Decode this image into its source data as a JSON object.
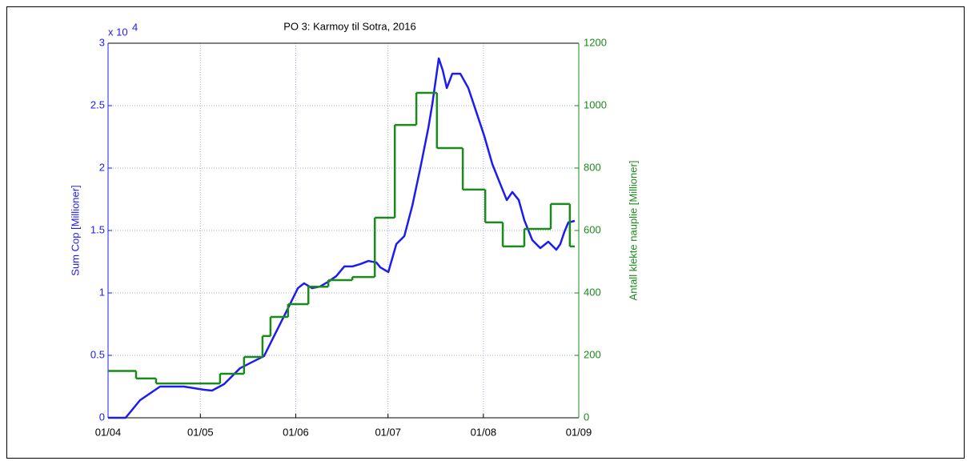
{
  "chart_data": {
    "type": "line",
    "title": "PO 3: Karmoy til Sotra, 2016",
    "ylabel": "Sum Cop [Millioner]",
    "y2label": "Antall klekte nauplie [Millioner]",
    "y_multiplier": {
      "base": "x 10",
      "exponent": "4"
    },
    "xlim": [
      0,
      153
    ],
    "xticks": [
      {
        "value": 0,
        "label": "01/04"
      },
      {
        "value": 30,
        "label": "01/05"
      },
      {
        "value": 61,
        "label": "01/06"
      },
      {
        "value": 91,
        "label": "01/07"
      },
      {
        "value": 122,
        "label": "01/08"
      },
      {
        "value": 153,
        "label": "01/09"
      }
    ],
    "ylim": [
      0,
      30000
    ],
    "yticks": [
      {
        "value": 0,
        "label": "0"
      },
      {
        "value": 5000,
        "label": "0.5"
      },
      {
        "value": 10000,
        "label": "1"
      },
      {
        "value": 15000,
        "label": "1.5"
      },
      {
        "value": 20000,
        "label": "2"
      },
      {
        "value": 25000,
        "label": "2.5"
      },
      {
        "value": 30000,
        "label": "3"
      }
    ],
    "y2lim": [
      0,
      1200
    ],
    "y2ticks": [
      0,
      200,
      400,
      600,
      800,
      1000,
      1200
    ],
    "grid": true,
    "series": [
      {
        "color": "#1c1cf0",
        "axis": "y",
        "x": [
          0,
          5.7,
          10.4,
          16.9,
          24.7,
          31.2,
          33.8,
          37.7,
          42.9,
          48.1,
          50.7,
          54.6,
          58.5,
          61.7,
          63.7,
          66.3,
          68.9,
          71.6,
          74.2,
          76.8,
          79.4,
          82.0,
          84.6,
          87.2,
          88.5,
          91.1,
          93.7,
          96.3,
          98.9,
          101.5,
          104.1,
          105.4,
          107.5,
          108.8,
          110.1,
          111.9,
          114.5,
          117.1,
          119.7,
          122.3,
          124.9,
          127.5,
          129.6,
          131.4,
          133.5,
          135.3,
          137.9,
          140.5,
          143.1,
          145.7,
          147.0,
          148.3,
          149.6,
          151.7
        ],
        "values": [
          0,
          0,
          1410,
          2500,
          2500,
          2240,
          2180,
          2690,
          3970,
          4620,
          4940,
          6860,
          8780,
          10380,
          10770,
          10380,
          10510,
          10900,
          11350,
          12120,
          12120,
          12310,
          12560,
          12440,
          12050,
          11670,
          13910,
          14550,
          16990,
          20000,
          23210,
          25130,
          28780,
          27820,
          26410,
          27560,
          27560,
          26410,
          24490,
          22560,
          20320,
          18720,
          17440,
          18080,
          17440,
          15830,
          14230,
          13590,
          14100,
          13460,
          13910,
          14870,
          15640,
          15770
        ]
      },
      {
        "color": "#1a8a1a",
        "axis": "y2",
        "step": true,
        "x": [
          0,
          9.1,
          15.6,
          36.4,
          44.2,
          50.2,
          52.8,
          58.5,
          65.1,
          71.6,
          79.4,
          86.7,
          93.2,
          100.2,
          106.9,
          115.3,
          122.6,
          128.3,
          135.3,
          143.9,
          150.1,
          151.7
        ],
        "values": [
          150,
          126,
          110,
          141,
          195,
          262,
          323,
          364,
          420,
          441,
          451,
          641,
          938,
          1041,
          864,
          731,
          626,
          549,
          605,
          685,
          549,
          549
        ]
      }
    ]
  }
}
